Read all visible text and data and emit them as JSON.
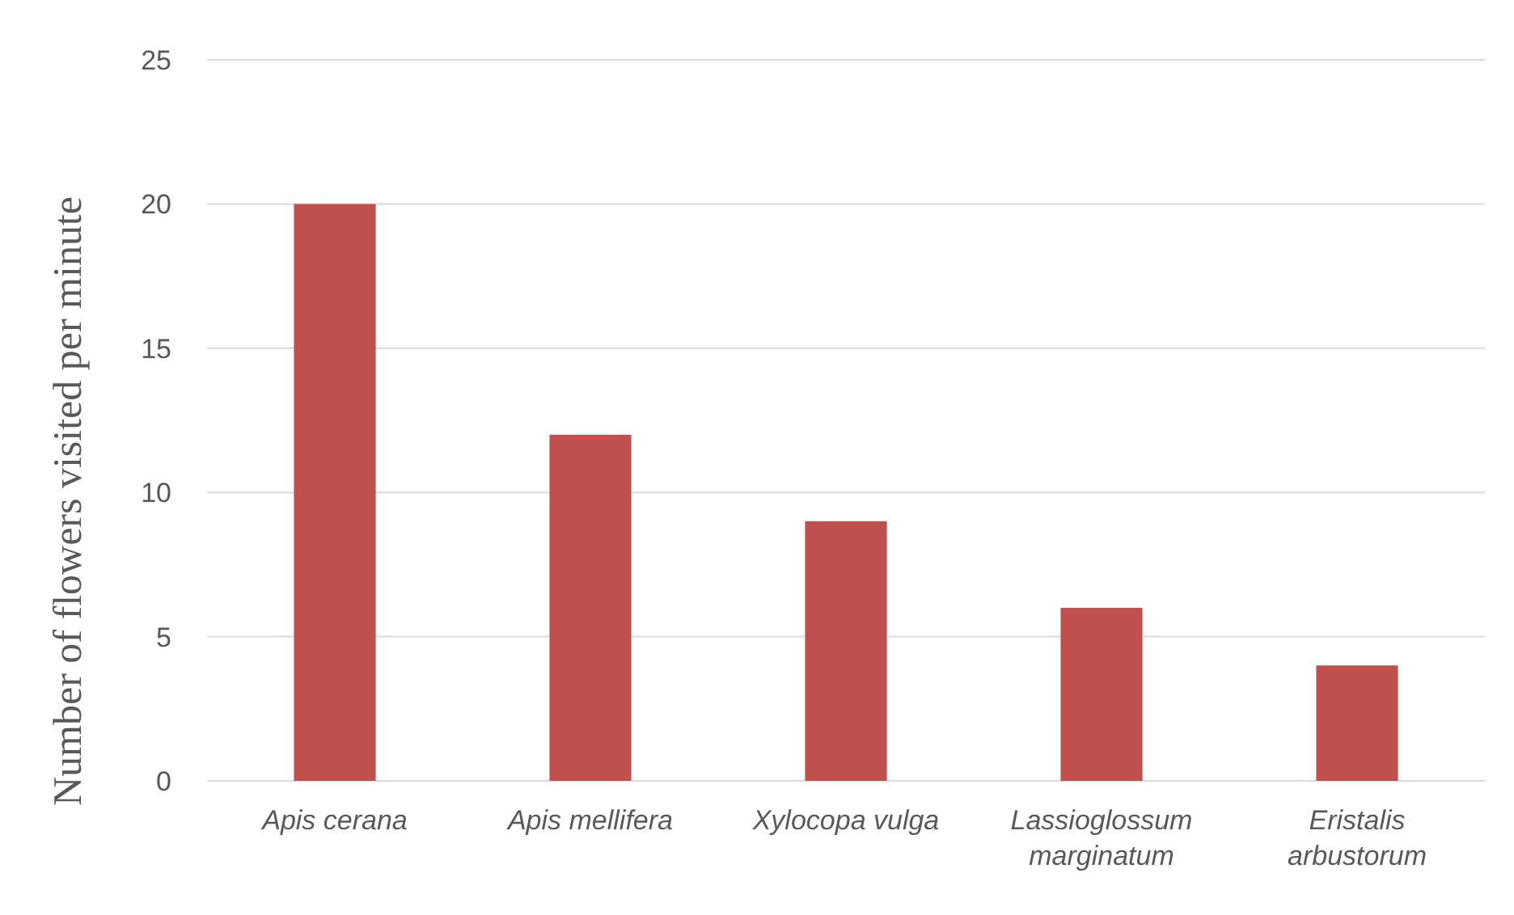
{
  "chart_data": {
    "type": "bar",
    "ylabel": "Number of flowers visited per minute",
    "categories": [
      "Apis cerana",
      "Apis mellifera",
      "Xylocopa vulga",
      "Lassioglossum marginatum",
      "Eristalis arbustorum"
    ],
    "values": [
      20,
      12,
      9,
      6,
      4
    ],
    "color": "#c0504d",
    "ylim": [
      0,
      25
    ],
    "yticks": [
      0,
      5,
      10,
      15,
      20,
      25
    ],
    "grid": "y"
  }
}
